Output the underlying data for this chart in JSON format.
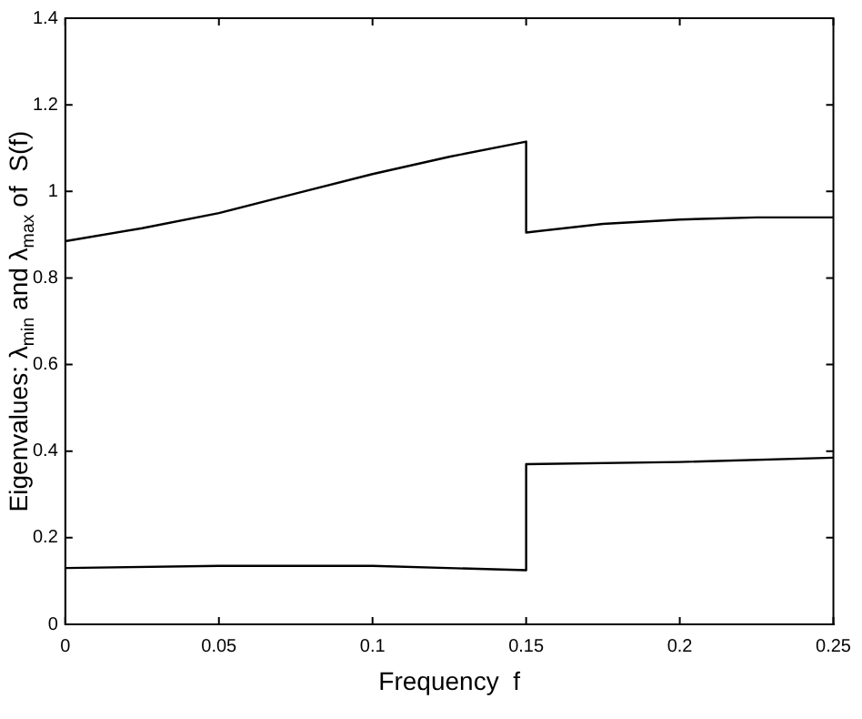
{
  "chart_data": {
    "type": "line",
    "xlabel": "Frequency  f",
    "ylabel": "Eigenvalues: λ$_{min}$ and λ$_{max}$ of  S(f)",
    "series": [
      {
        "color": "#000000",
        "x": [
          0,
          0.025,
          0.05,
          0.075,
          0.1,
          0.125,
          0.15,
          0.15,
          0.175,
          0.2,
          0.225,
          0.25
        ],
        "values": [
          0.885,
          0.915,
          0.95,
          0.995,
          1.04,
          1.08,
          1.115,
          0.905,
          0.925,
          0.935,
          0.94,
          0.94
        ]
      },
      {
        "color": "#000000",
        "x": [
          0,
          0.05,
          0.1,
          0.15,
          0.15,
          0.2,
          0.25
        ],
        "values": [
          0.13,
          0.135,
          0.135,
          0.125,
          0.37,
          0.375,
          0.385
        ]
      }
    ],
    "xlim": [
      0,
      0.25
    ],
    "xticks": [
      0,
      0.05,
      0.1,
      0.15,
      0.2,
      0.25
    ],
    "ylim": [
      0,
      1.4
    ],
    "yticks": [
      0,
      0.2,
      0.4,
      0.6,
      0.8,
      1,
      1.2,
      1.4
    ],
    "grid": false,
    "legend": false,
    "marker": "none",
    "line_style": "solid"
  }
}
